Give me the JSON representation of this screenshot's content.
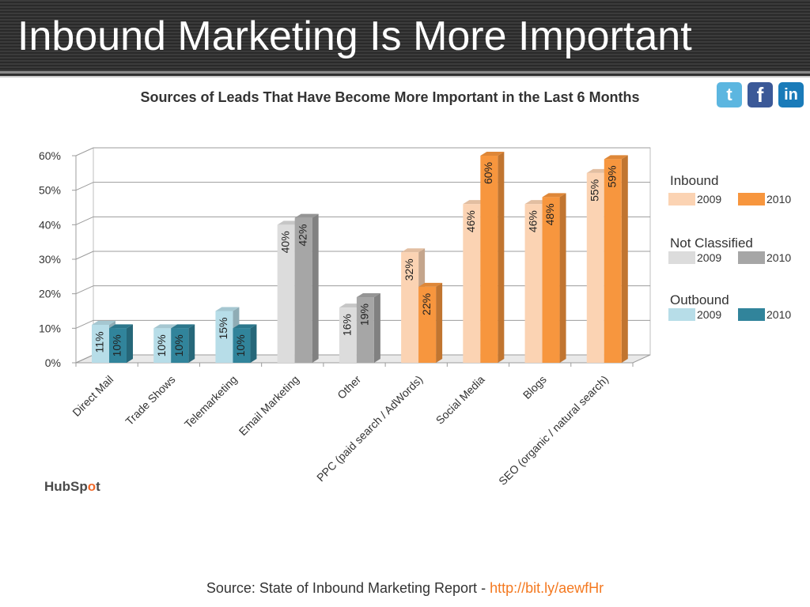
{
  "slide": {
    "title": "Inbound Marketing Is More Important",
    "source_text": "Source: State of Inbound Marketing Report - ",
    "source_link": "http://bit.ly/aewfHr",
    "logo_text_a": "HubSp",
    "logo_text_o": "o",
    "logo_text_b": "t"
  },
  "social_icons": [
    {
      "name": "twitter-icon",
      "glyph": "t",
      "color": "#5cb6e0"
    },
    {
      "name": "facebook-icon",
      "glyph": "f",
      "color": "#3b5998"
    },
    {
      "name": "linkedin-icon",
      "glyph": "in",
      "color": "#1a7bb9"
    }
  ],
  "chart_data": {
    "type": "bar",
    "title": "Sources of Leads That Have Become More Important in the Last 6 Months",
    "categories": [
      "Direct Mail",
      "Trade Shows",
      "Telemarketing",
      "Email Marketing",
      "Other",
      "PPC (paid search / AdWords)",
      "Social Media",
      "Blogs",
      "SEO (organic / natural search)"
    ],
    "group_by_category": [
      "Outbound",
      "Outbound",
      "Outbound",
      "Not Classified",
      "Not Classified",
      "Inbound",
      "Inbound",
      "Inbound",
      "Inbound"
    ],
    "series": [
      {
        "name": "2009",
        "values": [
          11,
          10,
          15,
          40,
          16,
          32,
          46,
          46,
          55
        ]
      },
      {
        "name": "2010",
        "values": [
          10,
          10,
          10,
          42,
          19,
          22,
          60,
          48,
          59
        ]
      }
    ],
    "value_labels": {
      "2009": [
        "11%",
        "10%",
        "15%",
        "40%",
        "16%",
        "32%",
        "46%",
        "46%",
        "55%"
      ],
      "2010": [
        "10%",
        "10%",
        "10%",
        "42%",
        "19%",
        "22%",
        "60%",
        "48%",
        "59%"
      ]
    },
    "ylim": [
      0,
      60
    ],
    "yticks": [
      0,
      10,
      20,
      30,
      40,
      50,
      60
    ],
    "ytick_labels": [
      "0%",
      "10%",
      "20%",
      "30%",
      "40%",
      "50%",
      "60%"
    ],
    "grid": true,
    "legend_position": "right",
    "legend": [
      {
        "group": "Inbound",
        "items": [
          {
            "label": "2009",
            "color": "#fbd3b3"
          },
          {
            "label": "2010",
            "color": "#f7963e"
          }
        ]
      },
      {
        "group": "Not Classified",
        "items": [
          {
            "label": "2009",
            "color": "#dcdcdc"
          },
          {
            "label": "2010",
            "color": "#a6a6a6"
          }
        ]
      },
      {
        "group": "Outbound",
        "items": [
          {
            "label": "2009",
            "color": "#b7dde8"
          },
          {
            "label": "2010",
            "color": "#31849b"
          }
        ]
      }
    ],
    "group_colors": {
      "Inbound": {
        "2009": "#fbd3b3",
        "2010": "#f7963e"
      },
      "Not Classified": {
        "2009": "#dcdcdc",
        "2010": "#a6a6a6"
      },
      "Outbound": {
        "2009": "#b7dde8",
        "2010": "#31849b"
      }
    }
  }
}
